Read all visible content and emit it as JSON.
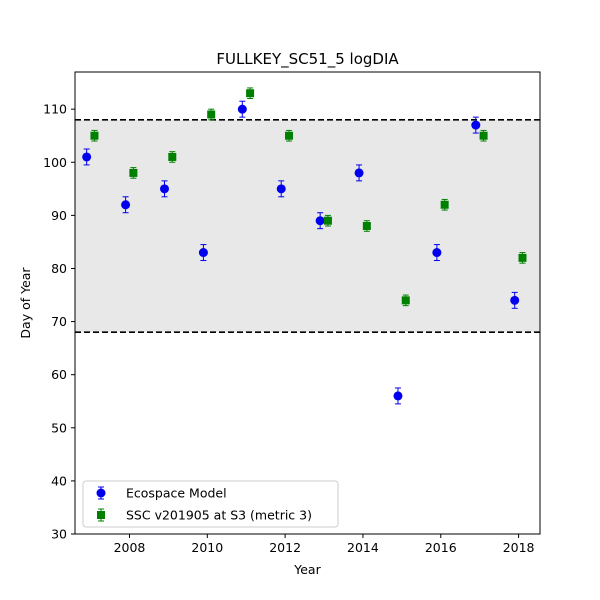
{
  "chart_data": {
    "type": "scatter",
    "title": "FULLKEY_SC51_5 logDIA",
    "xlabel": "Year",
    "ylabel": "Day of Year",
    "xlim": [
      2006.6,
      2018.55
    ],
    "ylim": [
      30,
      117
    ],
    "xticks": [
      2008,
      2010,
      2012,
      2014,
      2016,
      2018
    ],
    "yticks": [
      30,
      40,
      50,
      60,
      70,
      80,
      90,
      100,
      110
    ],
    "legend_position": "lower-left",
    "reference_band": {
      "lower": 68,
      "upper": 108,
      "fill": "#e8e8e8",
      "line_style": "dashed",
      "line_color": "#000000"
    },
    "series": [
      {
        "name": "Ecospace Model",
        "marker": "circle",
        "color": "#0000ee",
        "points": [
          {
            "x": 2006.9,
            "y": 101,
            "err": 1.5
          },
          {
            "x": 2007.9,
            "y": 92,
            "err": 1.5
          },
          {
            "x": 2008.9,
            "y": 95,
            "err": 1.5
          },
          {
            "x": 2009.9,
            "y": 83,
            "err": 1.5
          },
          {
            "x": 2010.9,
            "y": 110,
            "err": 1.5
          },
          {
            "x": 2011.9,
            "y": 95,
            "err": 1.5
          },
          {
            "x": 2012.9,
            "y": 89,
            "err": 1.5
          },
          {
            "x": 2013.9,
            "y": 98,
            "err": 1.5
          },
          {
            "x": 2014.9,
            "y": 56,
            "err": 1.5
          },
          {
            "x": 2015.9,
            "y": 83,
            "err": 1.5
          },
          {
            "x": 2016.9,
            "y": 107,
            "err": 1.5
          },
          {
            "x": 2017.9,
            "y": 74,
            "err": 1.5
          }
        ]
      },
      {
        "name": "SSC v201905 at S3 (metric 3)",
        "marker": "square",
        "color": "#008000",
        "points": [
          {
            "x": 2007.1,
            "y": 105,
            "err": 1.0
          },
          {
            "x": 2008.1,
            "y": 98,
            "err": 1.0
          },
          {
            "x": 2009.1,
            "y": 101,
            "err": 1.0
          },
          {
            "x": 2010.1,
            "y": 109,
            "err": 1.0
          },
          {
            "x": 2011.1,
            "y": 113,
            "err": 1.0
          },
          {
            "x": 2012.1,
            "y": 105,
            "err": 1.0
          },
          {
            "x": 2013.1,
            "y": 89,
            "err": 1.0
          },
          {
            "x": 2014.1,
            "y": 88,
            "err": 1.0
          },
          {
            "x": 2015.1,
            "y": 74,
            "err": 1.0
          },
          {
            "x": 2016.1,
            "y": 92,
            "err": 1.0
          },
          {
            "x": 2017.1,
            "y": 105,
            "err": 1.0
          },
          {
            "x": 2018.1,
            "y": 82,
            "err": 1.0
          }
        ]
      }
    ]
  }
}
